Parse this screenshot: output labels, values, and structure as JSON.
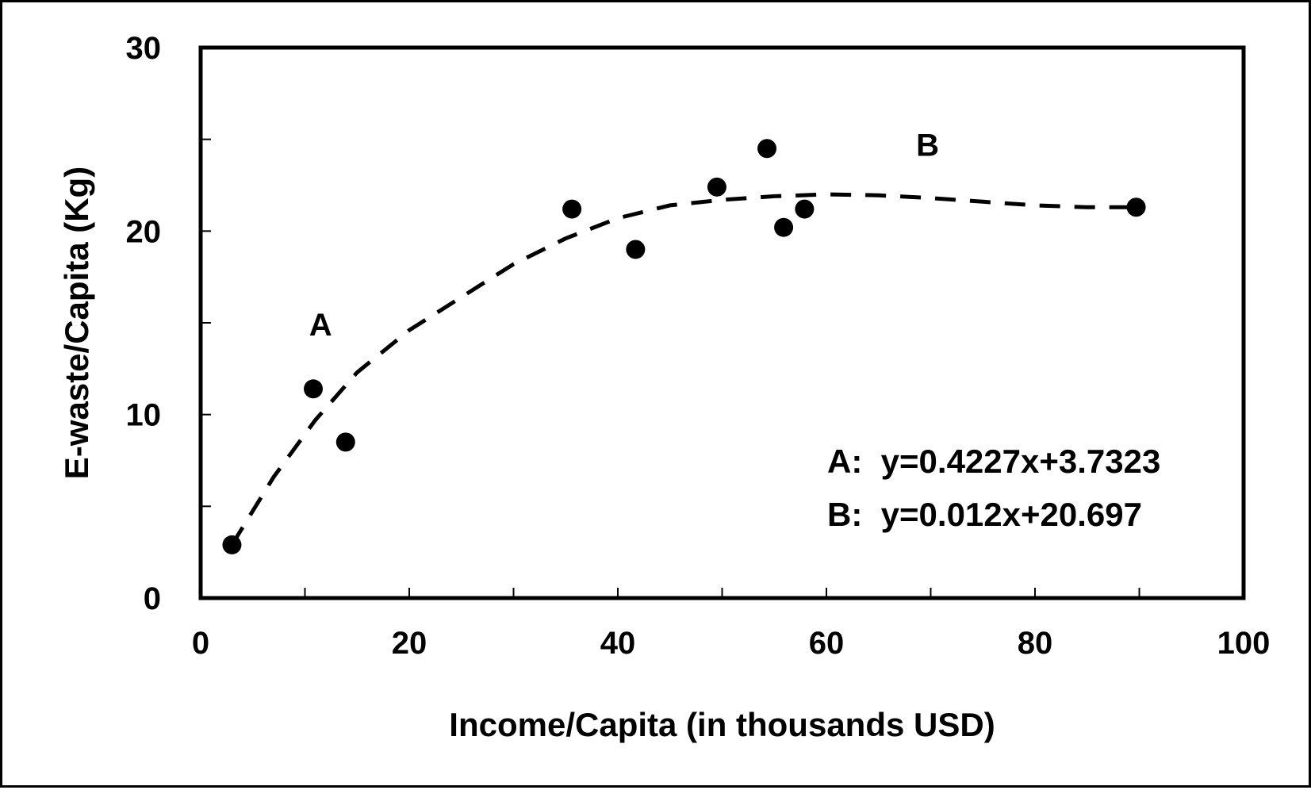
{
  "chart_data": {
    "type": "scatter",
    "title": "",
    "xlabel": "Income/Capita (in thousands USD)",
    "ylabel": "E-waste/Capita  (Kg)",
    "xlim": [
      0,
      100
    ],
    "ylim": [
      0,
      30
    ],
    "x_ticks": [
      "0",
      "20",
      "40",
      "60",
      "80",
      "100"
    ],
    "y_ticks": [
      "0",
      "10",
      "20",
      "30"
    ],
    "x_minor_step": 10,
    "y_minor_step": 5,
    "grid": false,
    "series": [
      {
        "points": [
          {
            "x": 3,
            "y": 2.9
          },
          {
            "x": 10.8,
            "y": 11.4
          },
          {
            "x": 13.9,
            "y": 8.5
          },
          {
            "x": 35.6,
            "y": 21.2
          },
          {
            "x": 41.7,
            "y": 19.0
          },
          {
            "x": 49.5,
            "y": 22.4
          },
          {
            "x": 54.3,
            "y": 24.5
          },
          {
            "x": 55.9,
            "y": 20.2
          },
          {
            "x": 57.9,
            "y": 21.2
          },
          {
            "x": 89.7,
            "y": 21.3
          }
        ],
        "color": "#000000"
      }
    ],
    "trend": {
      "style": "dashed",
      "color": "#000000",
      "points": [
        {
          "x": 3,
          "y": 2.9
        },
        {
          "x": 7,
          "y": 6.6
        },
        {
          "x": 11,
          "y": 9.7
        },
        {
          "x": 15,
          "y": 12.3
        },
        {
          "x": 20,
          "y": 14.6
        },
        {
          "x": 25,
          "y": 16.4
        },
        {
          "x": 30,
          "y": 18.2
        },
        {
          "x": 35,
          "y": 19.6
        },
        {
          "x": 40,
          "y": 20.7
        },
        {
          "x": 45,
          "y": 21.4
        },
        {
          "x": 50,
          "y": 21.7
        },
        {
          "x": 55,
          "y": 21.9
        },
        {
          "x": 60,
          "y": 22.0
        },
        {
          "x": 65,
          "y": 21.95
        },
        {
          "x": 70,
          "y": 21.8
        },
        {
          "x": 75,
          "y": 21.6
        },
        {
          "x": 80,
          "y": 21.4
        },
        {
          "x": 85,
          "y": 21.3
        },
        {
          "x": 89.7,
          "y": 21.3
        }
      ]
    },
    "annotations": [
      {
        "text": "A",
        "x": 11.5,
        "y": 14.3
      },
      {
        "text": "B",
        "x": 69.7,
        "y": 24.1
      }
    ],
    "equations": [
      "A:  y=0.4227x+3.7323",
      "B:  y=0.012x+20.697"
    ]
  }
}
